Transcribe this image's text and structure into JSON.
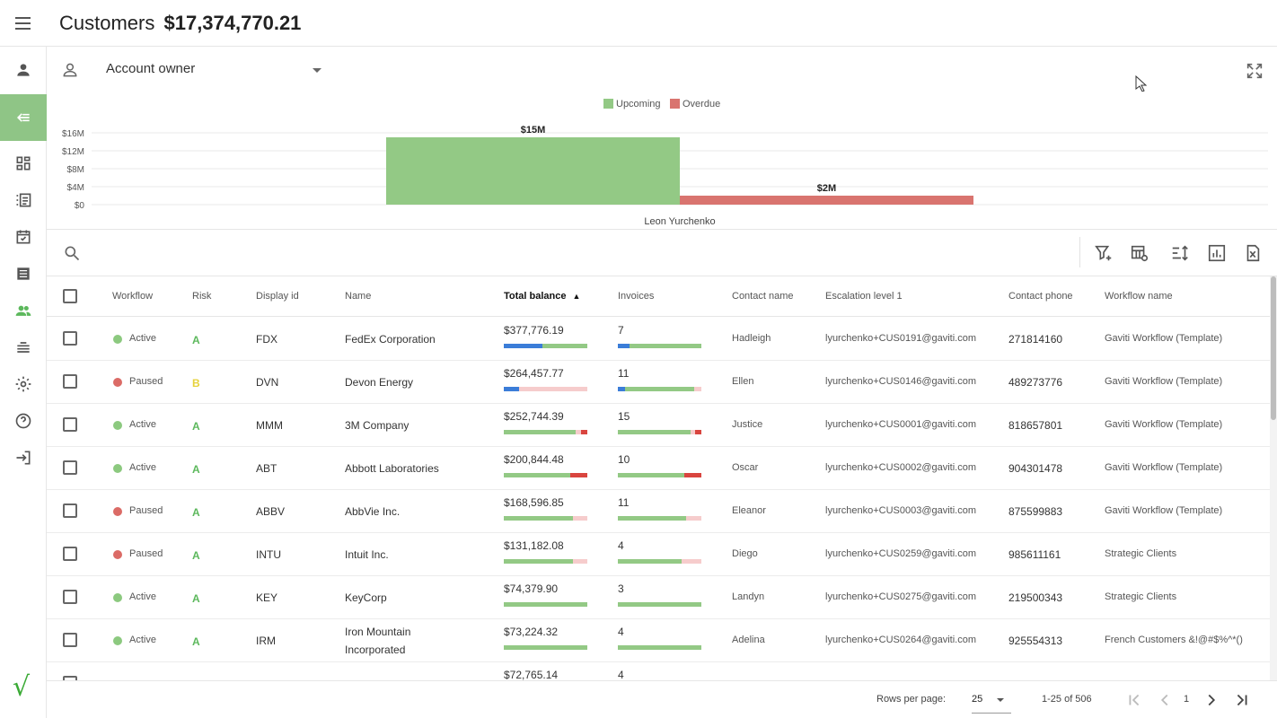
{
  "header": {
    "title": "Customers",
    "total": "$17,374,770.21"
  },
  "sidebar": {
    "items": [
      "user-icon",
      "collapse-icon",
      "dashboard-icon",
      "list-icon",
      "tasks-icon",
      "document-icon",
      "customers-icon",
      "stack-icon",
      "settings-icon",
      "help-icon",
      "logout-icon"
    ]
  },
  "filter": {
    "owner_label": "Account owner"
  },
  "chart_data": {
    "type": "bar",
    "categories": [
      "Leon Yurchenko"
    ],
    "series": [
      {
        "name": "Upcoming",
        "values": [
          15
        ],
        "color": "#93c985",
        "label": "$15M"
      },
      {
        "name": "Overdue",
        "values": [
          2
        ],
        "color": "#d9746f",
        "label": "$2M"
      }
    ],
    "yticks": [
      "$16M",
      "$12M",
      "$8M",
      "$4M",
      "$0"
    ],
    "ylim": [
      0,
      16
    ],
    "legend": "top-center",
    "grid": true
  },
  "table": {
    "columns": {
      "workflow": "Workflow",
      "risk": "Risk",
      "display_id": "Display id",
      "name": "Name",
      "total_balance": "Total balance",
      "invoices": "Invoices",
      "contact_name": "Contact name",
      "escalation": "Escalation level 1",
      "phone": "Contact phone",
      "workflow_name": "Workflow name"
    },
    "rows": [
      {
        "status": "Active",
        "risk": "A",
        "id": "FDX",
        "name": "FedEx Corporation",
        "balance": "$377,776.19",
        "invoices": "7",
        "contact": "Hadleigh",
        "email": "lyurchenko+CUS0191@gaviti.com",
        "phone": "271814160",
        "workflow": "Gaviti Workflow (Template)",
        "bal_bar": [
          0.46,
          0.54,
          0,
          0
        ],
        "inv_bar": [
          0.14,
          0.86,
          0,
          0
        ]
      },
      {
        "status": "Paused",
        "risk": "B",
        "id": "DVN",
        "name": "Devon Energy",
        "balance": "$264,457.77",
        "invoices": "11",
        "contact": "Ellen",
        "email": "lyurchenko+CUS0146@gaviti.com",
        "phone": "489273776",
        "workflow": "Gaviti Workflow (Template)",
        "bal_bar": [
          0.18,
          0,
          0.82,
          0
        ],
        "inv_bar": [
          0.09,
          0.82,
          0.09,
          0
        ]
      },
      {
        "status": "Active",
        "risk": "A",
        "id": "MMM",
        "name": "3M Company",
        "balance": "$252,744.39",
        "invoices": "15",
        "contact": "Justice",
        "email": "lyurchenko+CUS0001@gaviti.com",
        "phone": "818657801",
        "workflow": "Gaviti Workflow (Template)",
        "bal_bar": [
          0,
          0.86,
          0.06,
          0.08
        ],
        "inv_bar": [
          0,
          0.87,
          0.06,
          0.07
        ]
      },
      {
        "status": "Active",
        "risk": "A",
        "id": "ABT",
        "name": "Abbott Laboratories",
        "balance": "$200,844.48",
        "invoices": "10",
        "contact": "Oscar",
        "email": "lyurchenko+CUS0002@gaviti.com",
        "phone": "904301478",
        "workflow": "Gaviti Workflow (Template)",
        "bal_bar": [
          0,
          0.8,
          0,
          0.2
        ],
        "inv_bar": [
          0,
          0.8,
          0,
          0.2
        ]
      },
      {
        "status": "Paused",
        "risk": "A",
        "id": "ABBV",
        "name": "AbbVie Inc.",
        "balance": "$168,596.85",
        "invoices": "11",
        "contact": "Eleanor",
        "email": "lyurchenko+CUS0003@gaviti.com",
        "phone": "875599883",
        "workflow": "Gaviti Workflow (Template)",
        "bal_bar": [
          0,
          0.83,
          0.17,
          0
        ],
        "inv_bar": [
          0,
          0.82,
          0.18,
          0
        ]
      },
      {
        "status": "Paused",
        "risk": "A",
        "id": "INTU",
        "name": "Intuit Inc.",
        "balance": "$131,182.08",
        "invoices": "4",
        "contact": "Diego",
        "email": "lyurchenko+CUS0259@gaviti.com",
        "phone": "985611161",
        "workflow": "Strategic Clients",
        "bal_bar": [
          0,
          0.83,
          0.17,
          0
        ],
        "inv_bar": [
          0,
          0.76,
          0.24,
          0
        ]
      },
      {
        "status": "Active",
        "risk": "A",
        "id": "KEY",
        "name": "KeyCorp",
        "balance": "$74,379.90",
        "invoices": "3",
        "contact": "Landyn",
        "email": "lyurchenko+CUS0275@gaviti.com",
        "phone": "219500343",
        "workflow": "Strategic Clients",
        "bal_bar": [
          0,
          1,
          0,
          0
        ],
        "inv_bar": [
          0,
          1,
          0,
          0
        ]
      },
      {
        "status": "Active",
        "risk": "A",
        "id": "IRM",
        "name": "Iron Mountain Incorporated",
        "balance": "$73,224.32",
        "invoices": "4",
        "contact": "Adelina",
        "email": "lyurchenko+CUS0264@gaviti.com",
        "phone": "925554313",
        "workflow": "French Customers &!@#$%^*()",
        "bal_bar": [
          0,
          1,
          0,
          0
        ],
        "inv_bar": [
          0,
          1,
          0,
          0
        ]
      },
      {
        "status": "",
        "risk": "",
        "id": "",
        "name": "",
        "balance": "$72,765.14",
        "invoices": "4",
        "contact": "",
        "email": "",
        "phone": "",
        "workflow": "",
        "bal_bar": [
          0,
          1,
          0,
          0
        ],
        "inv_bar": [
          0,
          1,
          0,
          0
        ]
      }
    ]
  },
  "colors": {
    "active": "#8cc97f",
    "paused": "#db6b66",
    "risk_a": "#5cb85c",
    "risk_b": "#e6d23b",
    "bar_blue": "#3b7dd8",
    "bar_green": "#93c985",
    "bar_pink": "#f6cccc",
    "bar_red": "#d9453f"
  },
  "footer": {
    "rows_per_page_label": "Rows per page:",
    "rows_per_page": "25",
    "range": "1-25 of 506",
    "page": "1"
  }
}
